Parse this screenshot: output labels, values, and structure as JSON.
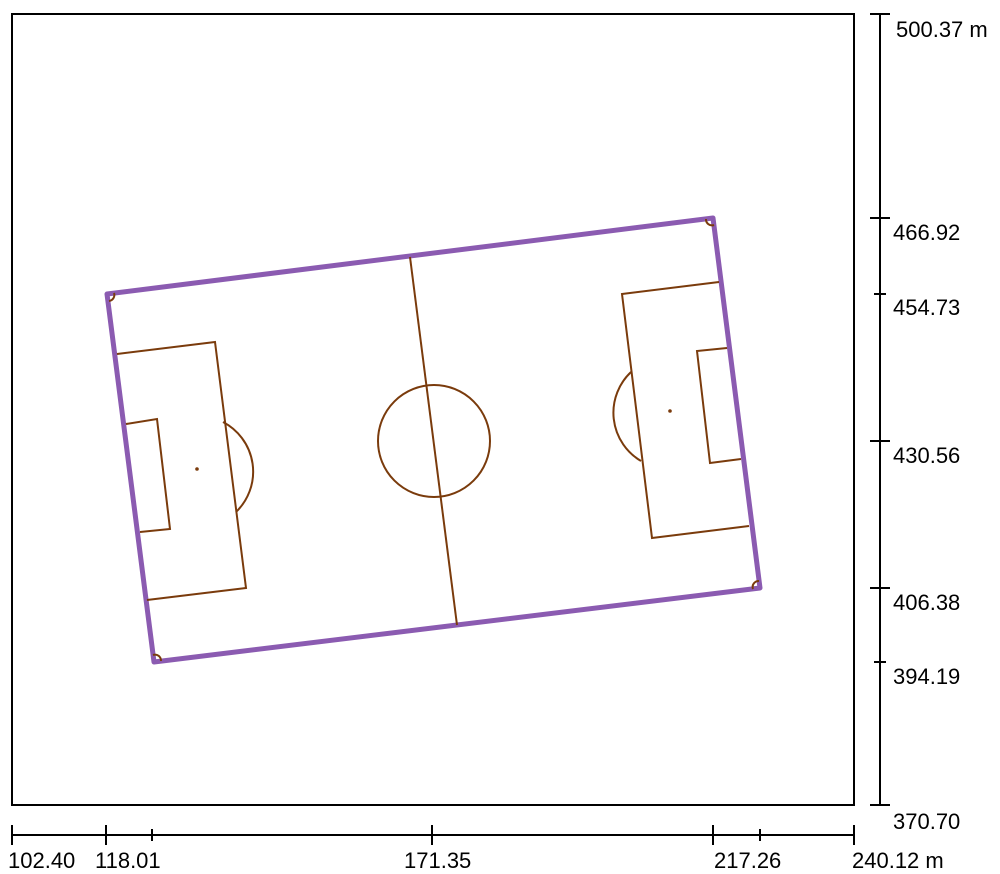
{
  "axes": {
    "x_ticks": [
      "102.40",
      "118.01",
      "171.35",
      "217.26",
      "240.12 m"
    ],
    "y_ticks": [
      "500.37 m",
      "466.92",
      "454.73",
      "430.56",
      "406.38",
      "394.19",
      "370.70"
    ],
    "x_range_m": [
      102.4,
      240.12
    ],
    "y_range_m": [
      370.7,
      500.37
    ]
  },
  "colors": {
    "boundary": "#8b5bb1",
    "markings": "#7a3b0c",
    "frame": "#000000"
  }
}
